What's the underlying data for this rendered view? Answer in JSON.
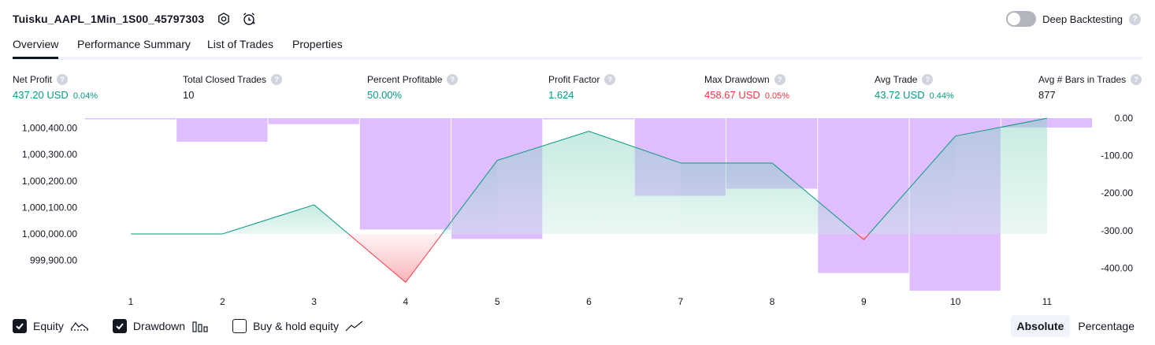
{
  "header": {
    "strategy_name": "Tuisku_AAPL_1Min_1S00_45797303",
    "settings_icon": "gear-icon",
    "alert_icon": "alarm-clock-icon",
    "deep_backtesting_label": "Deep Backtesting",
    "deep_backtesting_enabled": false,
    "help_glyph": "?"
  },
  "tabs": [
    {
      "label": "Overview",
      "active": true
    },
    {
      "label": "Performance Summary",
      "active": false
    },
    {
      "label": "List of Trades",
      "active": false
    },
    {
      "label": "Properties",
      "active": false
    }
  ],
  "metrics": {
    "net_profit": {
      "label": "Net Profit",
      "value": "437.20 USD",
      "pct": "0.04%"
    },
    "total_closed_trades": {
      "label": "Total Closed Trades",
      "value": "10"
    },
    "percent_profitable": {
      "label": "Percent Profitable",
      "value": "50.00%"
    },
    "profit_factor": {
      "label": "Profit Factor",
      "value": "1.624"
    },
    "max_drawdown": {
      "label": "Max Drawdown",
      "value": "458.67 USD",
      "pct": "0.05%"
    },
    "avg_trade": {
      "label": "Avg Trade",
      "value": "43.72 USD",
      "pct": "0.44%"
    },
    "avg_bars": {
      "label": "Avg # Bars in Trades",
      "value": "877"
    }
  },
  "colors": {
    "profit": "#089981",
    "loss": "#f23645",
    "drawdown_bar": "#d9b3ff",
    "equity_fill": "#b2e6d8"
  },
  "chart_data": {
    "type": "area",
    "x": [
      1,
      2,
      3,
      4,
      5,
      6,
      7,
      8,
      9,
      10,
      11
    ],
    "x_tick_labels": [
      "1",
      "2",
      "3",
      "4",
      "5",
      "6",
      "7",
      "8",
      "9",
      "10",
      "11"
    ],
    "left_axis": {
      "ticks": [
        "1,000,400.00",
        "1,000,300.00",
        "1,000,200.00",
        "1,000,100.00",
        "1,000,000.00",
        "999,900.00"
      ],
      "ylim": [
        999800,
        1000450
      ]
    },
    "right_axis": {
      "ticks": [
        "0.00",
        "-100.00",
        "-200.00",
        "-300.00",
        "-400.00"
      ],
      "ylim": [
        -460,
        0
      ]
    },
    "series": [
      {
        "name": "Equity",
        "axis": "left",
        "values": [
          1000000,
          1000000,
          1000110,
          999817,
          1000278,
          1000388,
          1000268,
          1000268,
          999978,
          1000370,
          1000437.2
        ]
      },
      {
        "name": "Drawdown",
        "axis": "right",
        "type": "bar",
        "values": [
          -2,
          -63,
          -16,
          -297,
          -322,
          -2,
          -207,
          -188,
          -413,
          -460,
          -25
        ]
      }
    ]
  },
  "legend": {
    "equity": {
      "label": "Equity",
      "checked": true
    },
    "drawdown": {
      "label": "Drawdown",
      "checked": true
    },
    "buy_hold": {
      "label": "Buy & hold equity",
      "checked": false
    }
  },
  "mode": {
    "absolute": "Absolute",
    "percentage": "Percentage",
    "selected": "absolute"
  }
}
